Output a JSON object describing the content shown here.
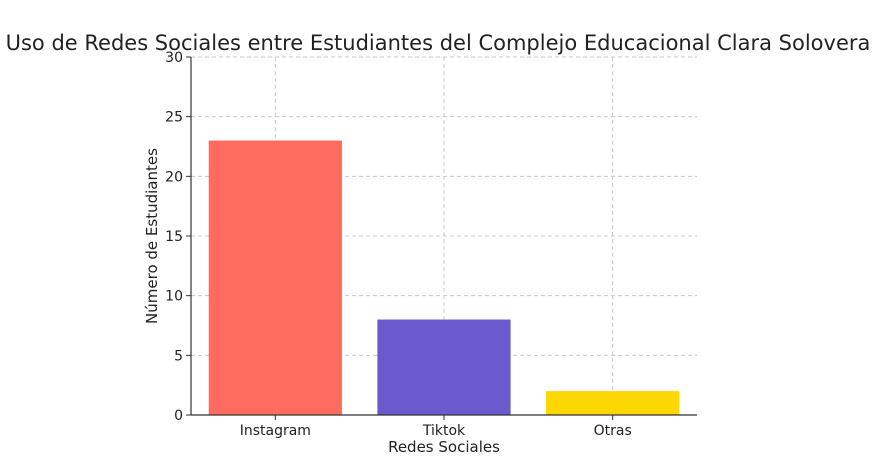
{
  "chart_data": {
    "type": "bar",
    "title": "Uso de Redes Sociales entre Estudiantes del Complejo Educacional Clara Solovera",
    "xlabel": "Redes Sociales",
    "ylabel": "Número de Estudiantes",
    "categories": [
      "Instagram",
      "Tiktok",
      "Otras"
    ],
    "values": [
      23,
      8,
      2
    ],
    "colors": [
      "#ff6b5e",
      "#6a5acd",
      "#ffd700"
    ],
    "ylim": [
      0,
      30
    ],
    "yticks": [
      0,
      5,
      10,
      15,
      20,
      25,
      30
    ],
    "grid": true,
    "legend": "none"
  }
}
